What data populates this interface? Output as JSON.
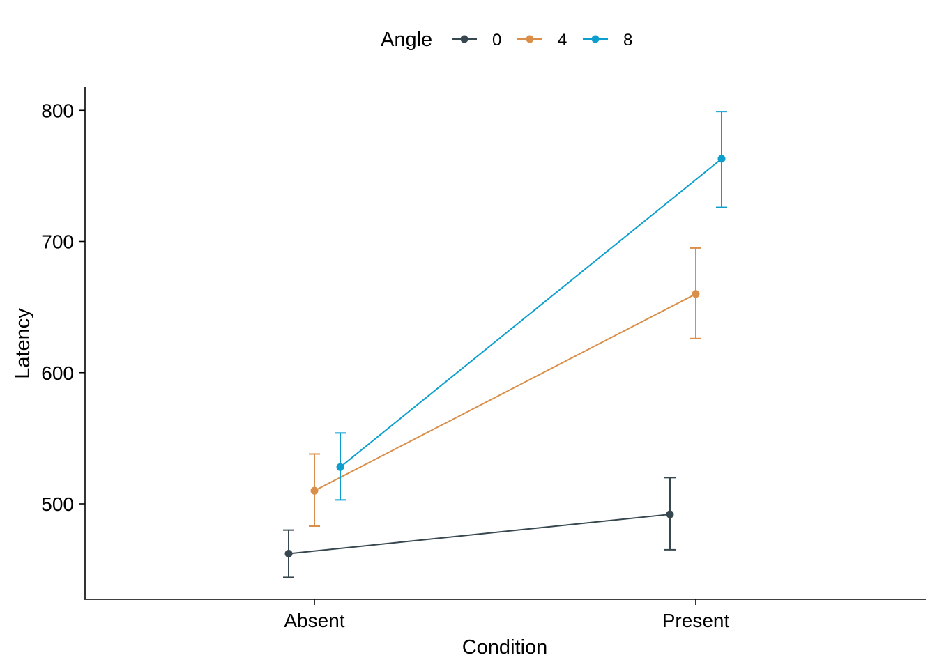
{
  "chart_data": {
    "type": "line",
    "xlabel": "Condition",
    "ylabel": "Latency",
    "categories": [
      "Absent",
      "Present"
    ],
    "y_ticks": [
      500,
      600,
      700,
      800
    ],
    "ylim": [
      427,
      818
    ],
    "grid": false,
    "legend": {
      "title": "Angle",
      "position": "top"
    },
    "series": [
      {
        "name": "0",
        "color": "#37474f",
        "values": [
          462,
          492
        ],
        "err_low": [
          444,
          465
        ],
        "err_high": [
          480,
          520
        ]
      },
      {
        "name": "4",
        "color": "#d98f4a",
        "values": [
          510,
          660
        ],
        "err_low": [
          483,
          626
        ],
        "err_high": [
          538,
          695
        ]
      },
      {
        "name": "8",
        "color": "#0c9fce",
        "values": [
          528,
          763
        ],
        "err_low": [
          503,
          726
        ],
        "err_high": [
          554,
          799
        ]
      }
    ]
  }
}
